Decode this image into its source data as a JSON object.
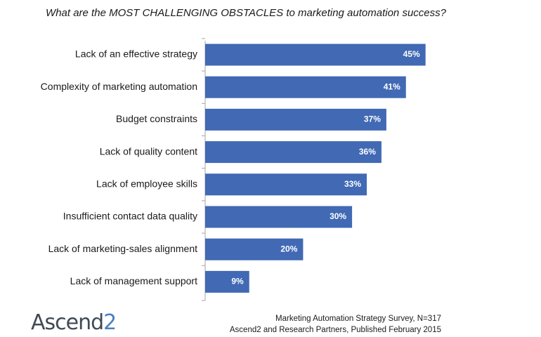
{
  "chart_data": {
    "type": "bar",
    "orientation": "horizontal",
    "title": "What are the MOST CHALLENGING OBSTACLES to marketing automation success?",
    "categories": [
      "Lack of an effective strategy",
      "Complexity of marketing automation",
      "Budget constraints",
      "Lack of quality content",
      "Lack of employee skills",
      "Insufficient contact data quality",
      "Lack of marketing-sales alignment",
      "Lack of management support"
    ],
    "values": [
      45,
      41,
      37,
      36,
      33,
      30,
      20,
      9
    ],
    "value_suffix": "%",
    "xlim": [
      0,
      100
    ],
    "bar_color": "#4169b4",
    "grid": false
  },
  "footer": {
    "logo_main": "Ascend",
    "logo_accent": "2",
    "source_line1": "Marketing Automation Strategy Survey, N=317",
    "source_line2": "Ascend2 and Research Partners, Published February 2015"
  }
}
